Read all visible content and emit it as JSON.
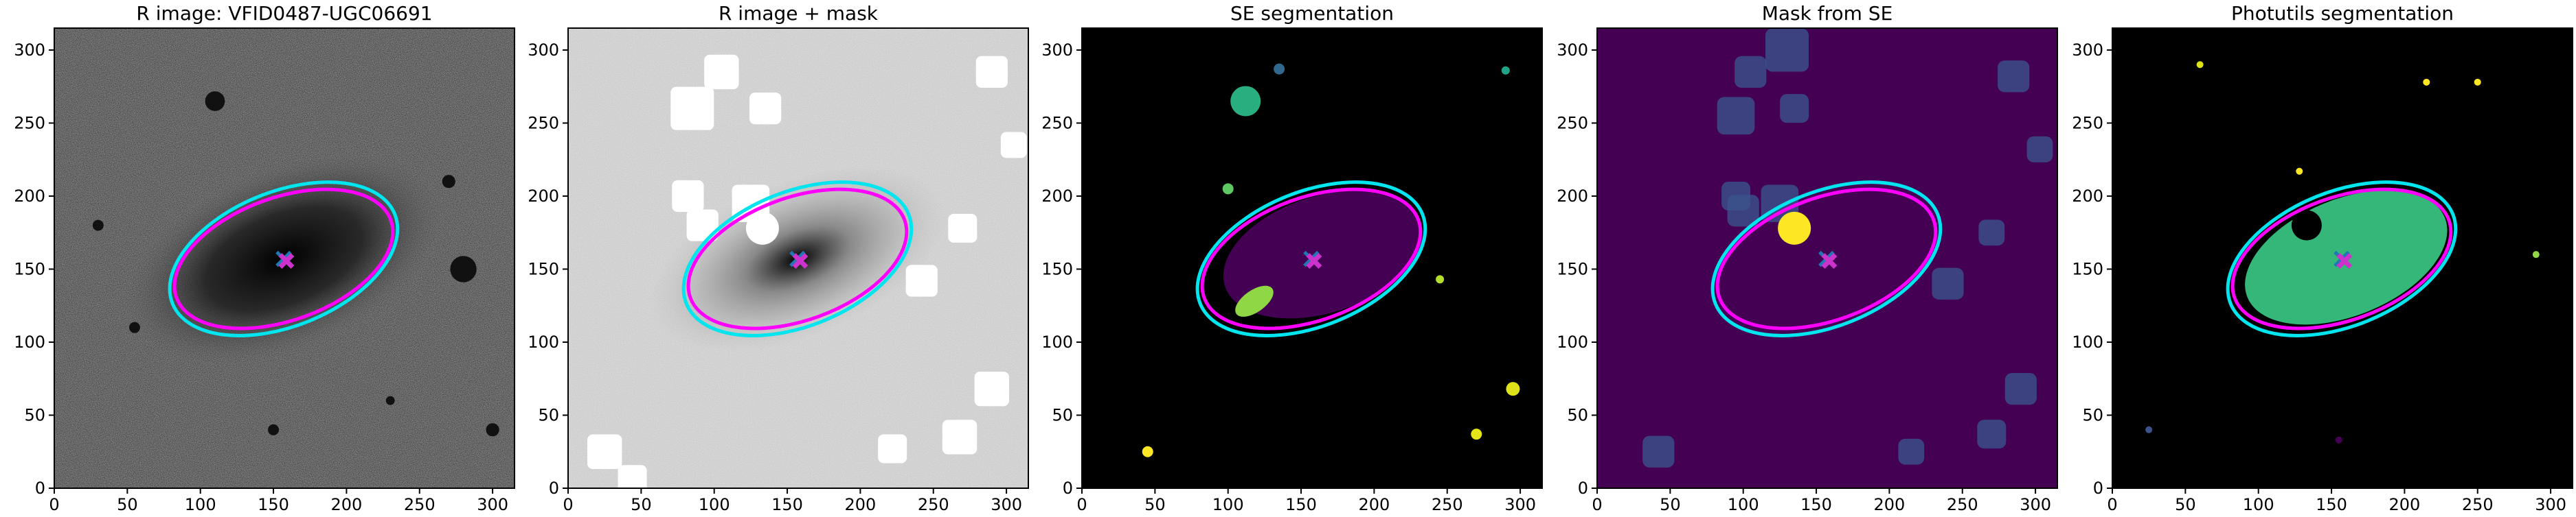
{
  "chart_data": [
    {
      "type": "image",
      "title": "R image: VFID0487-UGC06691",
      "xlim": [
        0,
        315
      ],
      "ylim": [
        0,
        315
      ],
      "xticks": [
        0,
        50,
        100,
        150,
        200,
        250,
        300
      ],
      "yticks": [
        0,
        50,
        100,
        150,
        200,
        250,
        300
      ],
      "ellipses": [
        {
          "color": "#00e5ee",
          "cx": 157,
          "cy": 157,
          "a": 82,
          "b": 46,
          "angle": 22
        },
        {
          "color": "#ff00ff",
          "cx": 157,
          "cy": 157,
          "a": 78,
          "b": 42,
          "angle": 20
        }
      ],
      "markers": [
        {
          "color": "#1f77b4",
          "x": 157,
          "y": 157
        },
        {
          "color": "#cc33cc",
          "x": 157,
          "y": 157
        }
      ]
    },
    {
      "type": "image",
      "title": "R image + mask",
      "xlim": [
        0,
        315
      ],
      "ylim": [
        0,
        315
      ],
      "xticks": [
        0,
        50,
        100,
        150,
        200,
        250,
        300
      ],
      "yticks": [
        0,
        50,
        100,
        150,
        200,
        250,
        300
      ],
      "ellipses": [
        {
          "color": "#00e5ee",
          "cx": 157,
          "cy": 157,
          "a": 82,
          "b": 46,
          "angle": 22
        },
        {
          "color": "#ff00ff",
          "cx": 157,
          "cy": 157,
          "a": 78,
          "b": 42,
          "angle": 20
        }
      ],
      "markers": [
        {
          "color": "#1f77b4",
          "x": 157,
          "y": 157
        },
        {
          "color": "#cc33cc",
          "x": 157,
          "y": 157
        }
      ]
    },
    {
      "type": "image",
      "title": "SE segmentation",
      "xlim": [
        0,
        315
      ],
      "ylim": [
        0,
        315
      ],
      "xticks": [
        0,
        50,
        100,
        150,
        200,
        250,
        300
      ],
      "yticks": [
        0,
        50,
        100,
        150,
        200,
        250,
        300
      ],
      "ellipses": [
        {
          "color": "#00e5ee",
          "cx": 157,
          "cy": 157,
          "a": 82,
          "b": 46,
          "angle": 22
        },
        {
          "color": "#ff00ff",
          "cx": 157,
          "cy": 157,
          "a": 78,
          "b": 42,
          "angle": 20
        }
      ],
      "markers": [
        {
          "color": "#1f77b4",
          "x": 157,
          "y": 157
        },
        {
          "color": "#cc33cc",
          "x": 157,
          "y": 157
        }
      ]
    },
    {
      "type": "image",
      "title": "Mask from SE",
      "xlim": [
        0,
        315
      ],
      "ylim": [
        0,
        315
      ],
      "xticks": [
        0,
        50,
        100,
        150,
        200,
        250,
        300
      ],
      "yticks": [
        0,
        50,
        100,
        150,
        200,
        250,
        300
      ],
      "ellipses": [
        {
          "color": "#00e5ee",
          "cx": 157,
          "cy": 157,
          "a": 82,
          "b": 46,
          "angle": 22
        },
        {
          "color": "#ff00ff",
          "cx": 157,
          "cy": 157,
          "a": 78,
          "b": 42,
          "angle": 20
        }
      ],
      "markers": [
        {
          "color": "#1f77b4",
          "x": 157,
          "y": 157
        },
        {
          "color": "#cc33cc",
          "x": 157,
          "y": 157
        }
      ]
    },
    {
      "type": "image",
      "title": "Photutils segmentation",
      "xlim": [
        0,
        315
      ],
      "ylim": [
        0,
        315
      ],
      "xticks": [
        0,
        50,
        100,
        150,
        200,
        250,
        300
      ],
      "yticks": [
        0,
        50,
        100,
        150,
        200,
        250,
        300
      ],
      "ellipses": [
        {
          "color": "#00e5ee",
          "cx": 157,
          "cy": 157,
          "a": 82,
          "b": 46,
          "angle": 22
        },
        {
          "color": "#ff00ff",
          "cx": 157,
          "cy": 157,
          "a": 78,
          "b": 42,
          "angle": 20
        }
      ],
      "markers": [
        {
          "color": "#1f77b4",
          "x": 157,
          "y": 157
        },
        {
          "color": "#cc33cc",
          "x": 157,
          "y": 157
        }
      ]
    }
  ]
}
